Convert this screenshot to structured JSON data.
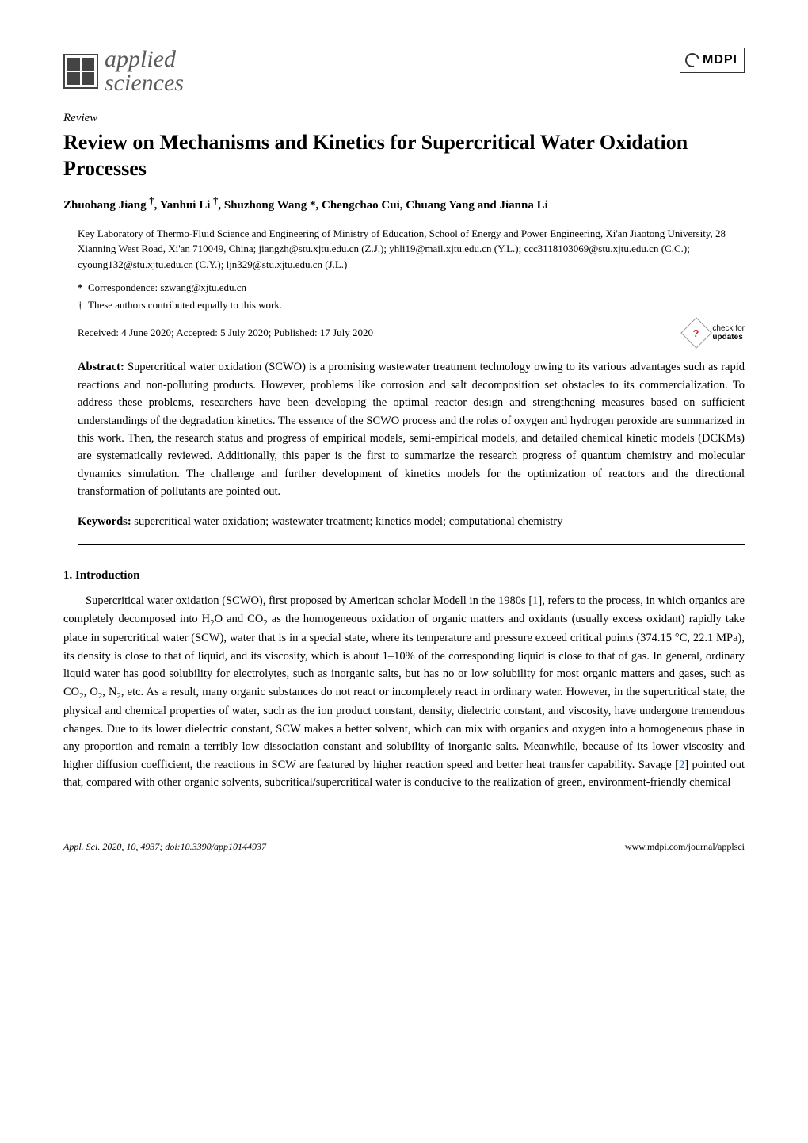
{
  "header": {
    "journal_name_line1": "applied",
    "journal_name_line2": "sciences",
    "publisher": "MDPI"
  },
  "article": {
    "type": "Review",
    "title": "Review on Mechanisms and Kinetics for Supercritical Water Oxidation Processes",
    "authors_html": "Zhuohang Jiang †, Yanhui Li †, Shuzhong Wang *, Chengchao Cui, Chuang Yang and Jianna Li",
    "affiliation": "Key Laboratory of Thermo-Fluid Science and Engineering of Ministry of Education, School of Energy and Power Engineering, Xi'an Jiaotong University, 28 Xianning West Road, Xi'an 710049, China; jiangzh@stu.xjtu.edu.cn (Z.J.); yhli19@mail.xjtu.edu.cn (Y.L.); ccc3118103069@stu.xjtu.edu.cn (C.C.); cyoung132@stu.xjtu.edu.cn (C.Y.); ljn329@stu.xjtu.edu.cn (J.L.)",
    "correspondence_label": "*",
    "correspondence": "Correspondence: szwang@xjtu.edu.cn",
    "equal_label": "†",
    "equal": "These authors contributed equally to this work.",
    "received": "Received: 4 June 2020; Accepted: 5 July 2020; Published: 17 July 2020",
    "check_for": "check for",
    "updates": "updates"
  },
  "abstract": {
    "label": "Abstract:",
    "text": "Supercritical water oxidation (SCWO) is a promising wastewater treatment technology owing to its various advantages such as rapid reactions and non-polluting products. However, problems like corrosion and salt decomposition set obstacles to its commercialization. To address these problems, researchers have been developing the optimal reactor design and strengthening measures based on sufficient understandings of the degradation kinetics. The essence of the SCWO process and the roles of oxygen and hydrogen peroxide are summarized in this work. Then, the research status and progress of empirical models, semi-empirical models, and detailed chemical kinetic models (DCKMs) are systematically reviewed. Additionally, this paper is the first to summarize the research progress of quantum chemistry and molecular dynamics simulation. The challenge and further development of kinetics models for the optimization of reactors and the directional transformation of pollutants are pointed out."
  },
  "keywords": {
    "label": "Keywords:",
    "text": "supercritical water oxidation; wastewater treatment; kinetics model; computational chemistry"
  },
  "section1": {
    "heading": "1. Introduction",
    "body": "Supercritical water oxidation (SCWO), first proposed by American scholar Modell in the 1980s [1], refers to the process, in which organics are completely decomposed into H₂O and CO₂ as the homogeneous oxidation of organic matters and oxidants (usually excess oxidant) rapidly take place in supercritical water (SCW), water that is in a special state, where its temperature and pressure exceed critical points (374.15 °C, 22.1 MPa), its density is close to that of liquid, and its viscosity, which is about 1–10% of the corresponding liquid is close to that of gas. In general, ordinary liquid water has good solubility for electrolytes, such as inorganic salts, but has no or low solubility for most organic matters and gases, such as CO₂, O₂, N₂, etc. As a result, many organic substances do not react or incompletely react in ordinary water. However, in the supercritical state, the physical and chemical properties of water, such as the ion product constant, density, dielectric constant, and viscosity, have undergone tremendous changes. Due to its lower dielectric constant, SCW makes a better solvent, which can mix with organics and oxygen into a homogeneous phase in any proportion and remain a terribly low dissociation constant and solubility of inorganic salts. Meanwhile, because of its lower viscosity and higher diffusion coefficient, the reactions in SCW are featured by higher reaction speed and better heat transfer capability. Savage [2] pointed out that, compared with other organic solvents, subcritical/supercritical water is conducive to the realization of green, environment-friendly chemical"
  },
  "footer": {
    "citation": "Appl. Sci. 2020, 10, 4937; doi:10.3390/app10144937",
    "url": "www.mdpi.com/journal/applsci"
  },
  "colors": {
    "text": "#000000",
    "ref_link": "#1565c0",
    "logo_gray": "#5a5a5a",
    "check_red": "#c62828",
    "background": "#ffffff"
  },
  "typography": {
    "title_fontsize": 26,
    "body_fontsize": 14.5,
    "small_fontsize": 13,
    "footer_fontsize": 12,
    "font_family": "Palatino Linotype"
  }
}
